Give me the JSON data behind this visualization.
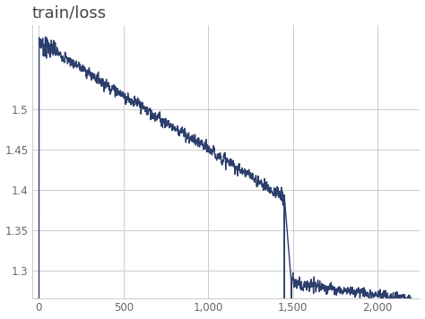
{
  "title": "train/loss",
  "title_fontsize": 13,
  "title_color": "#444444",
  "line_color": "#2c3e6b",
  "line_width": 1.0,
  "background_color": "#ffffff",
  "grid_color": "#cccccc",
  "tick_color": "#666666",
  "xlim": [
    -40,
    2250
  ],
  "ylim": [
    1.265,
    1.605
  ],
  "xticks": [
    0,
    500,
    1000,
    1500,
    2000
  ],
  "yticks": [
    1.3,
    1.35,
    1.4,
    1.45,
    1.5
  ],
  "xticklabels": [
    "0",
    "500",
    "1,000",
    "1,500",
    "2,000"
  ],
  "yticklabels": [
    "1.3",
    "1.35",
    "1.4",
    "1.45",
    "1.5"
  ],
  "figsize": [
    4.74,
    3.56
  ],
  "dpi": 100
}
